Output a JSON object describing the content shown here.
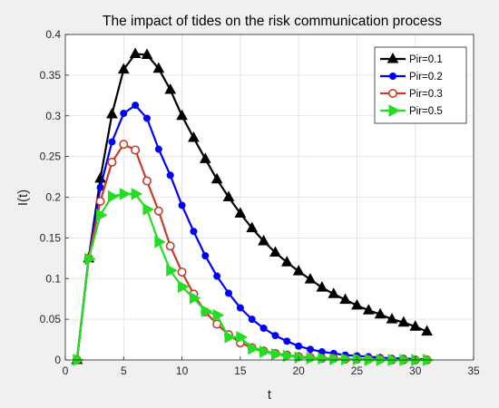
{
  "chart_data": {
    "type": "line",
    "title": "The impact of tides on the risk communication process",
    "xlabel": "t",
    "ylabel": "I(t)",
    "xlim": [
      0,
      35
    ],
    "ylim": [
      0,
      0.4
    ],
    "xticks": [
      0,
      5,
      10,
      15,
      20,
      25,
      30,
      35
    ],
    "yticks": [
      0,
      0.05,
      0.1,
      0.15,
      0.2,
      0.25,
      0.3,
      0.35,
      0.4
    ],
    "xtick_labels": [
      "0",
      "5",
      "10",
      "15",
      "20",
      "25",
      "30",
      "35"
    ],
    "ytick_labels": [
      "0",
      "0.05",
      "0.1",
      "0.15",
      "0.2",
      "0.25",
      "0.3",
      "0.35",
      "0.4"
    ],
    "grid": true,
    "legend_position": "top-right",
    "x": [
      1,
      2,
      3,
      4,
      5,
      6,
      7,
      8,
      9,
      10,
      11,
      12,
      13,
      14,
      15,
      16,
      17,
      18,
      19,
      20,
      21,
      22,
      23,
      24,
      25,
      26,
      27,
      28,
      29,
      30,
      31
    ],
    "series": [
      {
        "name": "Pir=0.1",
        "color": "#000000",
        "marker": "triangle-up",
        "values": [
          0,
          0.125,
          0.223,
          0.302,
          0.357,
          0.376,
          0.375,
          0.358,
          0.332,
          0.3,
          0.273,
          0.247,
          0.222,
          0.2,
          0.18,
          0.162,
          0.146,
          0.132,
          0.12,
          0.109,
          0.099,
          0.089,
          0.081,
          0.074,
          0.067,
          0.061,
          0.056,
          0.05,
          0.046,
          0.041,
          0.035
        ]
      },
      {
        "name": "Pir=0.2",
        "color": "#0000ff",
        "marker": "circle",
        "values": [
          0,
          0.125,
          0.212,
          0.268,
          0.303,
          0.313,
          0.297,
          0.259,
          0.227,
          0.19,
          0.158,
          0.128,
          0.103,
          0.082,
          0.064,
          0.05,
          0.039,
          0.03,
          0.023,
          0.017,
          0.013,
          0.01,
          0.008,
          0.006,
          0.005,
          0.004,
          0.003,
          0.002,
          0.002,
          0.001,
          0.001
        ]
      },
      {
        "name": "Pir=0.3",
        "color": "#c83c28",
        "marker": "circle-open",
        "values": [
          0,
          0.125,
          0.195,
          0.243,
          0.265,
          0.258,
          0.22,
          0.183,
          0.14,
          0.108,
          0.081,
          0.059,
          0.044,
          0.031,
          0.021,
          0.015,
          0.011,
          0.008,
          0.006,
          0.004,
          0.003,
          0.002,
          0.002,
          0.001,
          0.001,
          0.001,
          0.001,
          0.0,
          0.0,
          0.0,
          0.0
        ]
      },
      {
        "name": "Pir=0.5",
        "color": "#22dd22",
        "marker": "triangle-right",
        "values": [
          0,
          0.124,
          0.178,
          0.201,
          0.204,
          0.204,
          0.185,
          0.145,
          0.11,
          0.09,
          0.076,
          0.06,
          0.055,
          0.028,
          0.028,
          0.014,
          0.01,
          0.007,
          0.005,
          0.003,
          0.002,
          0.002,
          0.001,
          0.001,
          0.001,
          0.0,
          0.0,
          0.0,
          0.0,
          0.0,
          0.0
        ]
      }
    ]
  }
}
